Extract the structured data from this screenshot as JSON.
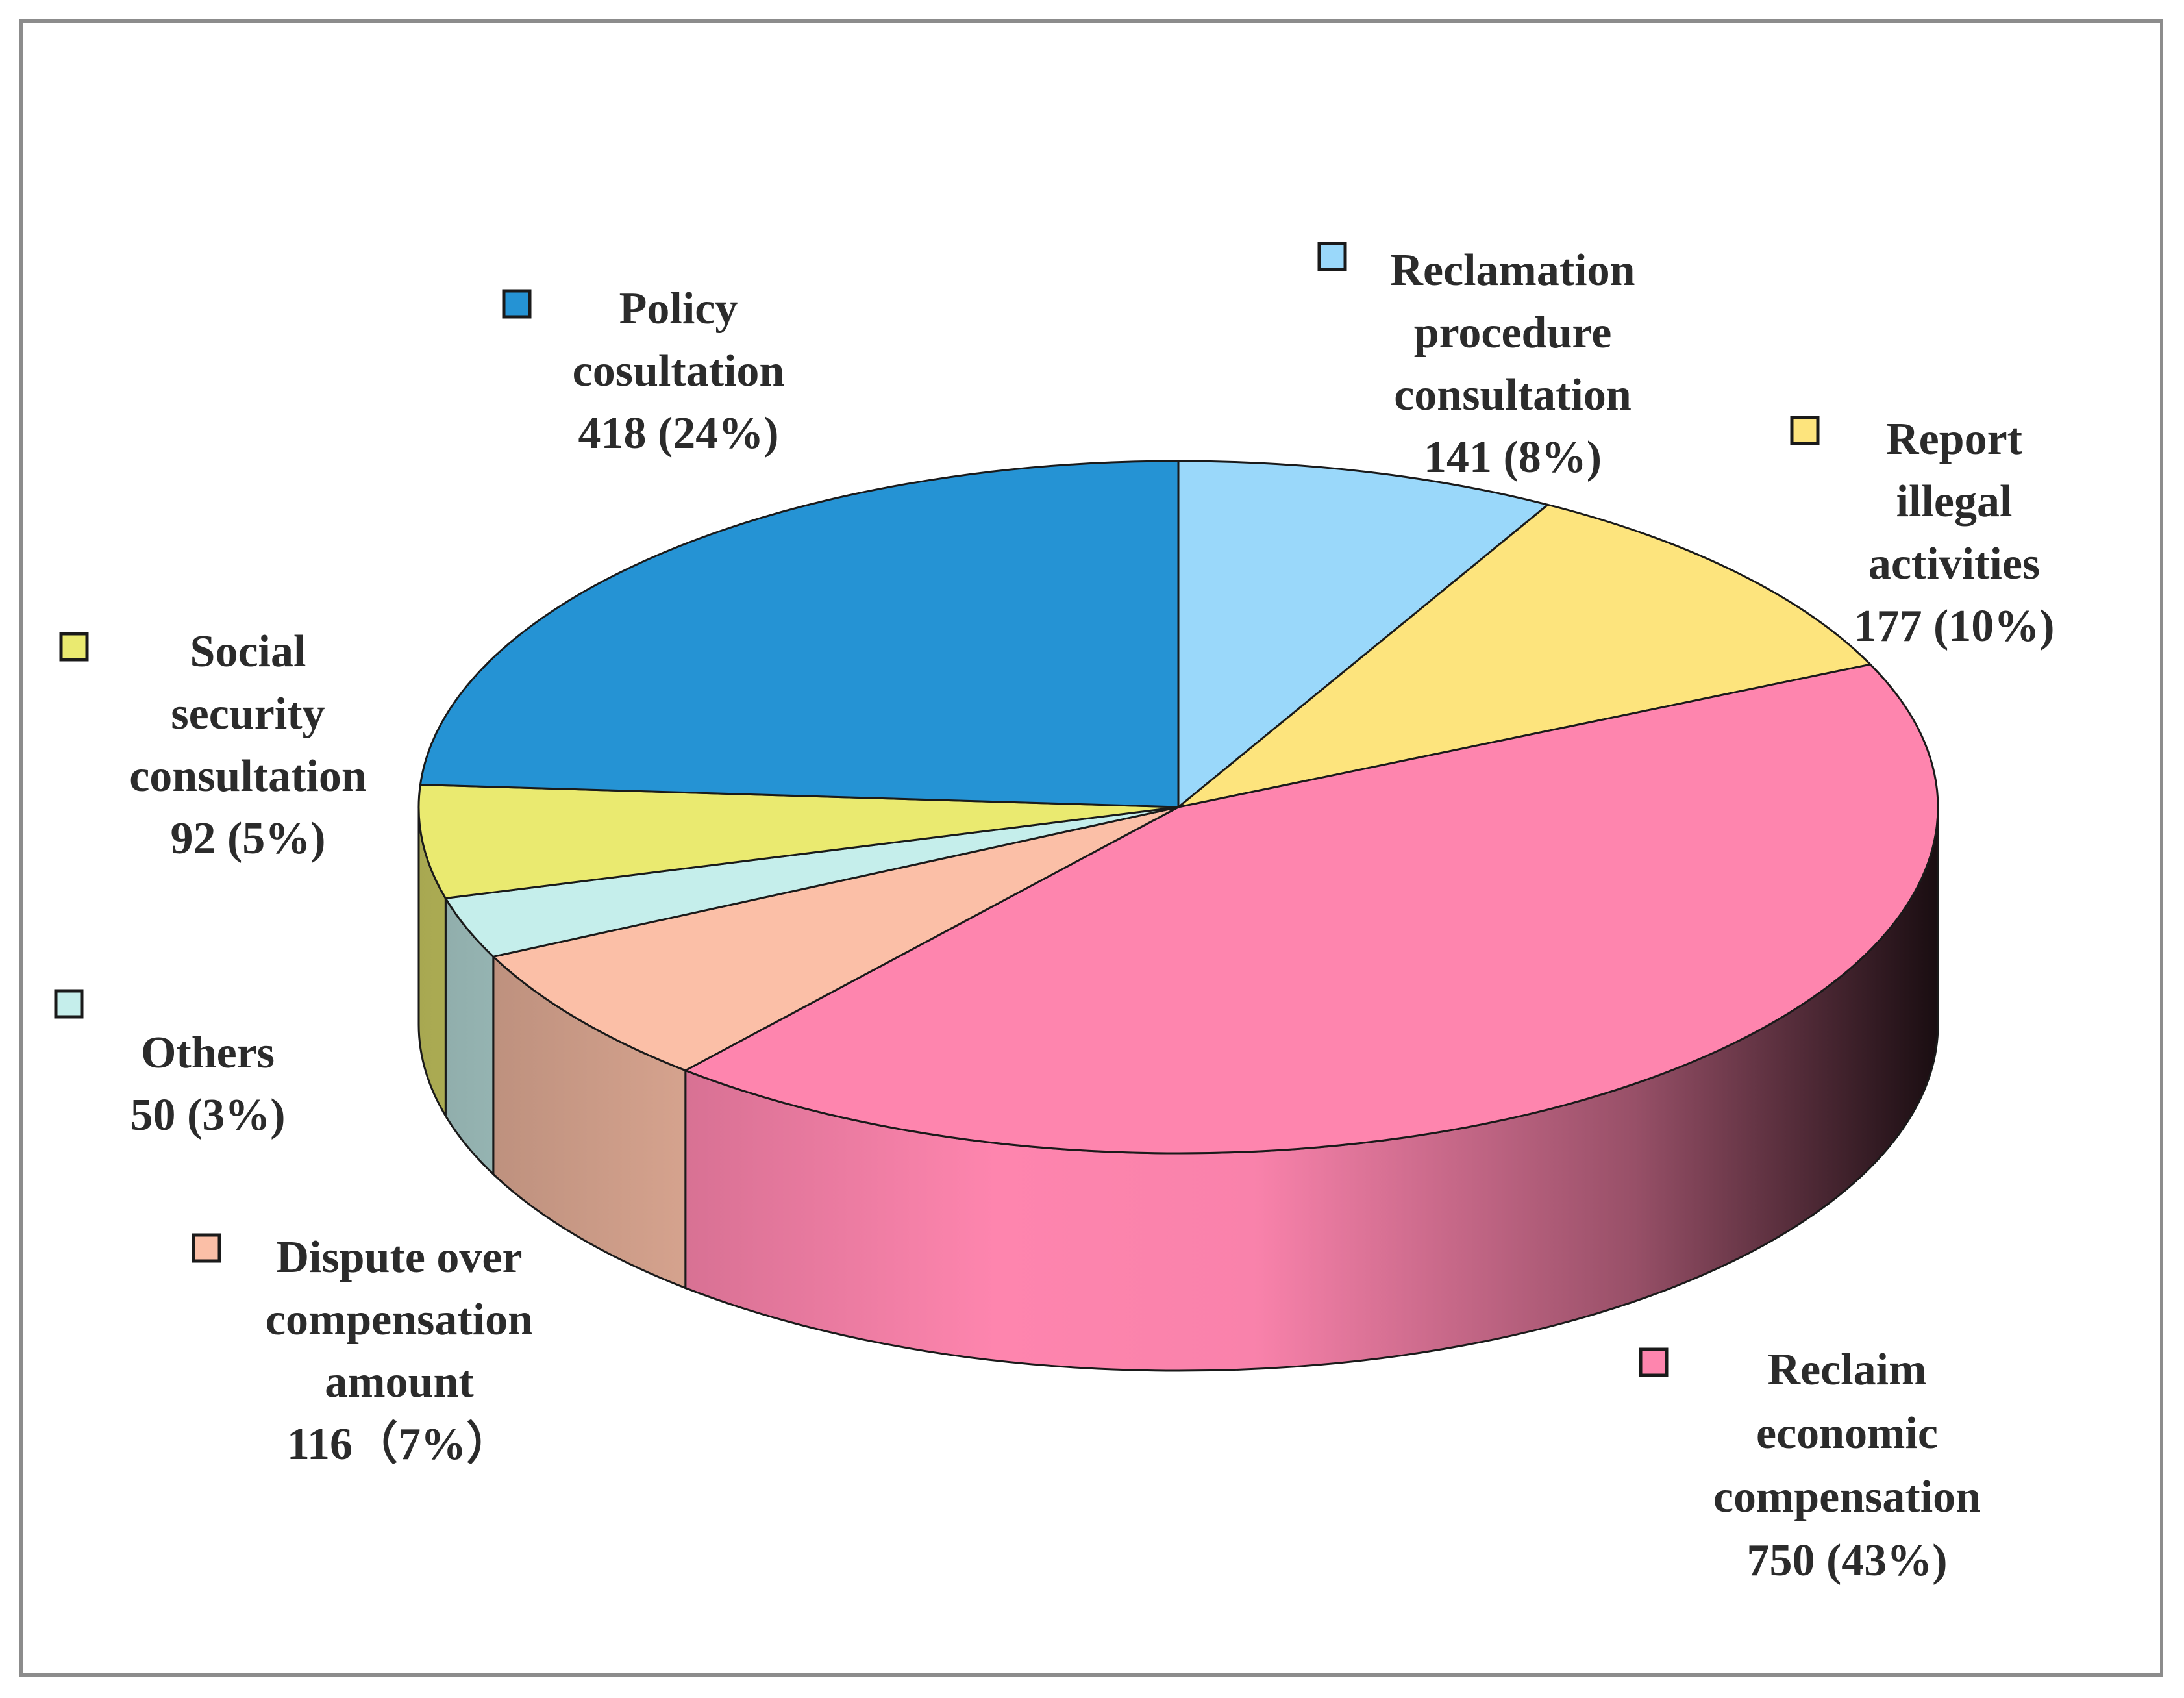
{
  "chart_data": {
    "type": "pie",
    "title": "",
    "unit": "",
    "slices": [
      {
        "name": "Reclamation procedure consultation",
        "label_lines": [
          "Reclamation",
          "procedure",
          "consultation"
        ],
        "value": 141,
        "percent_label": "141 (8%)",
        "color": "#9AD8FA"
      },
      {
        "name": "Report illegal activities",
        "label_lines": [
          "Report",
          "illegal",
          "activities"
        ],
        "value": 177,
        "percent_label": "177 (10%)",
        "color": "#FDE47D"
      },
      {
        "name": "Reclaim economic compensation",
        "label_lines": [
          "Reclaim",
          "economic",
          "compensation"
        ],
        "value": 750,
        "percent_label": "750 (43%)",
        "color": "#FE85AE"
      },
      {
        "name": "Dispute over compensation amount",
        "label_lines": [
          "Dispute over",
          "compensation",
          "amount"
        ],
        "value": 116,
        "percent_label": "116（7%）",
        "color": "#FBBFA7"
      },
      {
        "name": "Others",
        "label_lines": [
          "Others"
        ],
        "value": 50,
        "percent_label": "50 (3%)",
        "color": "#C5EEEB"
      },
      {
        "name": "Social security consultation",
        "label_lines": [
          "Social",
          "security",
          "consultation"
        ],
        "value": 92,
        "percent_label": "92 (5%)",
        "color": "#EAEA70"
      },
      {
        "name": "Policy cosultation",
        "label_lines": [
          "Policy",
          "cosultation"
        ],
        "value": 418,
        "percent_label": "418 (24%)",
        "color": "#2593D4"
      }
    ],
    "style": "3d-pie",
    "legend": "labels beside slices"
  }
}
